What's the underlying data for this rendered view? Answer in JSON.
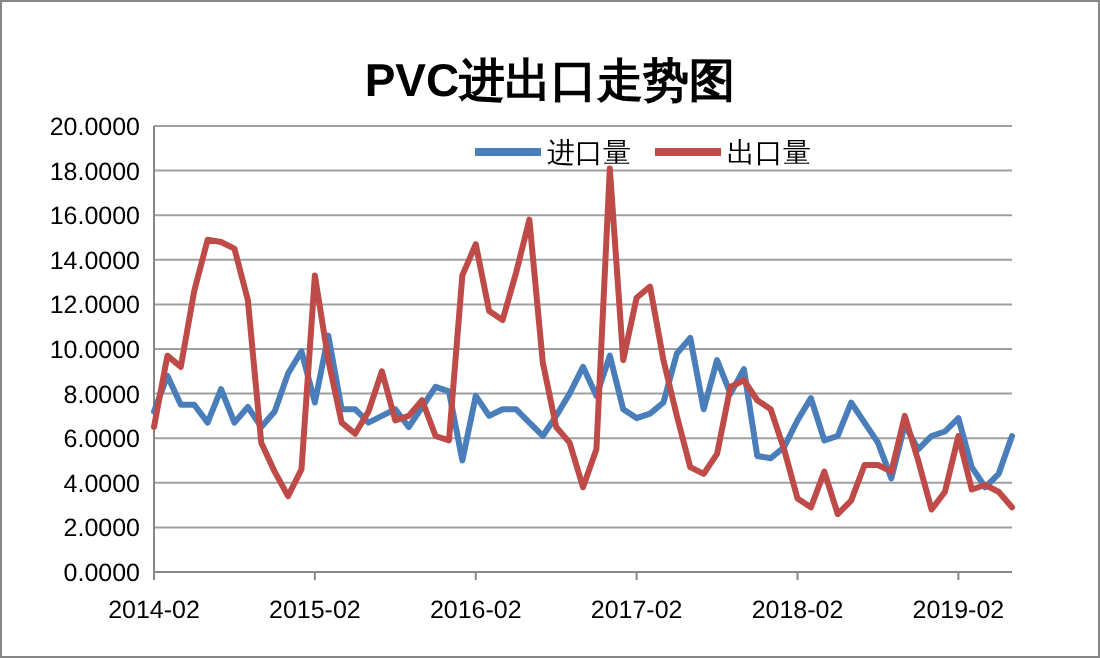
{
  "chart_data": {
    "type": "line",
    "title": "PVC进出口走势图",
    "x": [
      "2014-02",
      "2014-03",
      "2014-04",
      "2014-05",
      "2014-06",
      "2014-07",
      "2014-08",
      "2014-09",
      "2014-10",
      "2014-11",
      "2014-12",
      "2015-01",
      "2015-02",
      "2015-03",
      "2015-04",
      "2015-05",
      "2015-06",
      "2015-07",
      "2015-08",
      "2015-09",
      "2015-10",
      "2015-11",
      "2015-12",
      "2016-01",
      "2016-02",
      "2016-03",
      "2016-04",
      "2016-05",
      "2016-06",
      "2016-07",
      "2016-08",
      "2016-09",
      "2016-10",
      "2016-11",
      "2016-12",
      "2017-01",
      "2017-02",
      "2017-03",
      "2017-04",
      "2017-05",
      "2017-06",
      "2017-07",
      "2017-08",
      "2017-09",
      "2017-10",
      "2017-11",
      "2017-12",
      "2018-01",
      "2018-02",
      "2018-03",
      "2018-04",
      "2018-05",
      "2018-06",
      "2018-07",
      "2018-08",
      "2018-09",
      "2018-10",
      "2018-11",
      "2018-12",
      "2019-01",
      "2019-02",
      "2019-03",
      "2019-04",
      "2019-05",
      "2019-06"
    ],
    "series": [
      {
        "name": "进口量",
        "color": "#4a7ebb",
        "values": [
          7.2,
          8.8,
          7.5,
          7.5,
          6.7,
          8.2,
          6.7,
          7.4,
          6.5,
          7.2,
          8.9,
          9.9,
          7.6,
          10.6,
          7.3,
          7.3,
          6.7,
          7.0,
          7.3,
          6.5,
          7.4,
          8.3,
          8.1,
          5.0,
          7.9,
          7.0,
          7.3,
          7.3,
          6.7,
          6.1,
          7.0,
          8.0,
          9.2,
          7.9,
          9.7,
          7.3,
          6.9,
          7.1,
          7.6,
          9.8,
          10.5,
          7.3,
          9.5,
          8.0,
          9.1,
          5.2,
          5.1,
          5.6,
          6.8,
          7.8,
          5.9,
          6.1,
          7.6,
          6.7,
          5.8,
          4.2,
          6.6,
          5.5,
          6.1,
          6.3,
          6.9,
          4.7,
          3.8,
          4.4,
          6.1
        ]
      },
      {
        "name": "出口量",
        "color": "#be4b48",
        "values": [
          6.5,
          9.7,
          9.2,
          12.6,
          14.9,
          14.8,
          14.5,
          12.2,
          5.8,
          4.5,
          3.4,
          4.6,
          13.3,
          9.5,
          6.7,
          6.2,
          7.2,
          9.0,
          6.8,
          7.0,
          7.7,
          6.1,
          5.9,
          13.3,
          14.7,
          11.7,
          11.3,
          13.4,
          15.8,
          9.4,
          6.5,
          5.8,
          3.8,
          5.5,
          18.1,
          9.5,
          12.3,
          12.8,
          9.5,
          7.0,
          4.7,
          4.4,
          5.3,
          8.3,
          8.6,
          7.7,
          7.3,
          5.5,
          3.3,
          2.9,
          4.5,
          2.6,
          3.2,
          4.8,
          4.8,
          4.5,
          7.0,
          5.0,
          2.8,
          3.6,
          6.1,
          3.7,
          3.9,
          3.6,
          2.9
        ]
      }
    ],
    "xlim": [
      "2014-02",
      "2019-06"
    ],
    "xticks": [
      "2014-02",
      "2015-02",
      "2016-02",
      "2017-02",
      "2018-02",
      "2019-02"
    ],
    "ylim": [
      0,
      20
    ],
    "yticks": [
      {
        "value": 0,
        "label": "0.0000"
      },
      {
        "value": 2,
        "label": "2.0000"
      },
      {
        "value": 4,
        "label": "4.0000"
      },
      {
        "value": 6,
        "label": "6.0000"
      },
      {
        "value": 8,
        "label": "8.0000"
      },
      {
        "value": 10,
        "label": "10.0000"
      },
      {
        "value": 12,
        "label": "12.0000"
      },
      {
        "value": 14,
        "label": "14.0000"
      },
      {
        "value": 16,
        "label": "16.0000"
      },
      {
        "value": 18,
        "label": "18.0000"
      },
      {
        "value": 20,
        "label": "20.0000"
      }
    ],
    "grid": "y",
    "legend": "top"
  }
}
